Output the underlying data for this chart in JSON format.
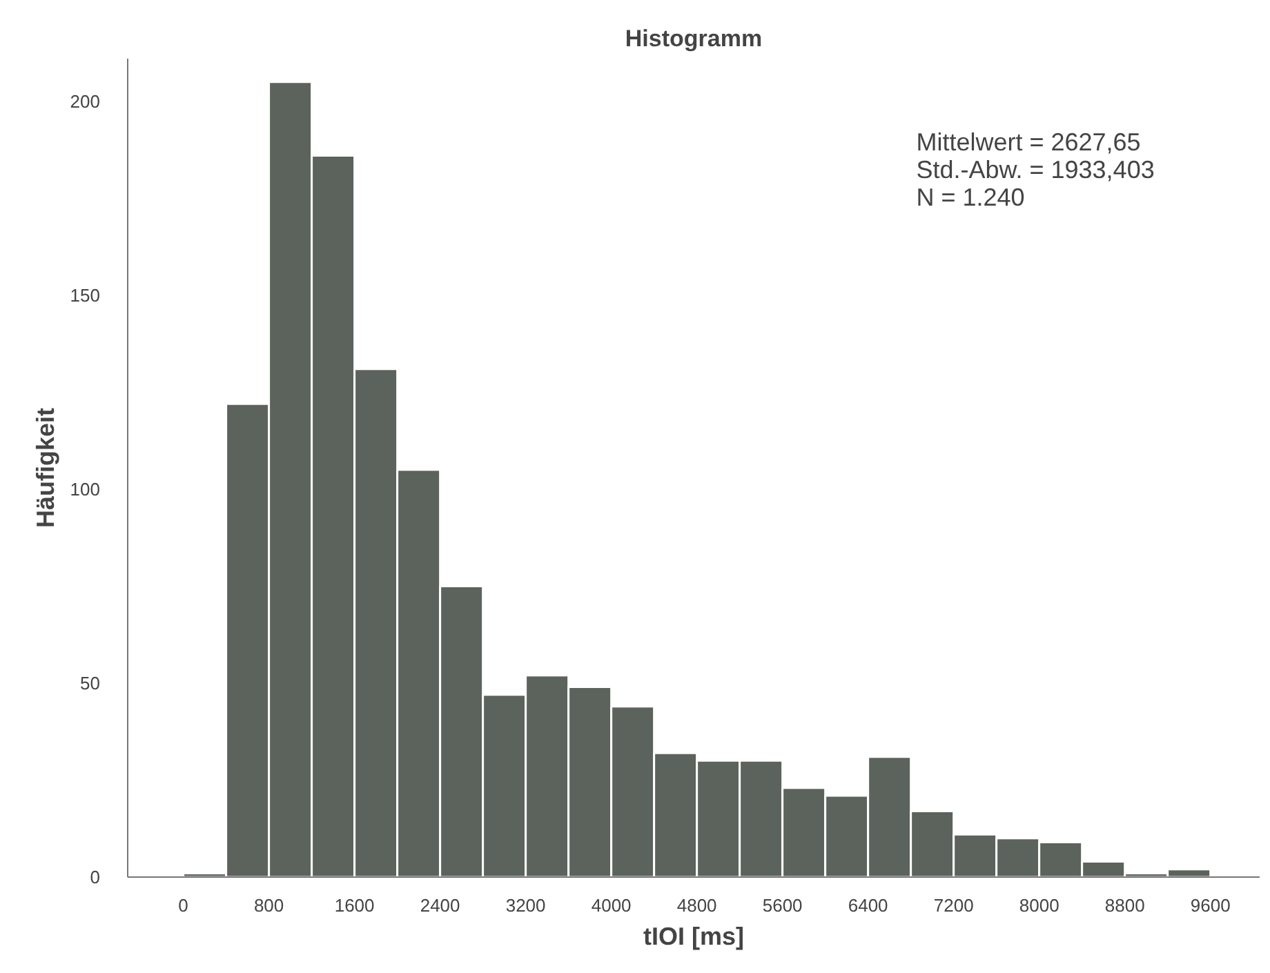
{
  "chart_data": {
    "type": "histogram",
    "title": "Histogramm",
    "xlabel": "tIOI [ms]",
    "ylabel": "Häufigkeit",
    "bins": [
      0,
      400,
      800,
      1200,
      1600,
      2000,
      2400,
      2800,
      3200,
      3600,
      4000,
      4400,
      4800,
      5200,
      5600,
      6000,
      6400,
      6800,
      7200,
      7600,
      8000,
      8400,
      8800,
      9200,
      9600
    ],
    "values": [
      1,
      122,
      205,
      186,
      131,
      105,
      75,
      47,
      52,
      49,
      44,
      32,
      30,
      30,
      23,
      21,
      31,
      17,
      11,
      10,
      9,
      4,
      1,
      2
    ],
    "color": "#5b635c",
    "xlim": [
      -520,
      10060
    ],
    "ylim": [
      0,
      211
    ],
    "xticks": [
      0,
      800,
      1600,
      2400,
      3200,
      4000,
      4800,
      5600,
      6400,
      7200,
      8000,
      8800,
      9600
    ],
    "yticks": [
      0,
      50,
      100,
      150,
      200
    ],
    "grid": false,
    "annotations": [
      "Mittelwert = 2627,65\nStd.-Abw. = 1933,403\nN = 1.240"
    ]
  }
}
